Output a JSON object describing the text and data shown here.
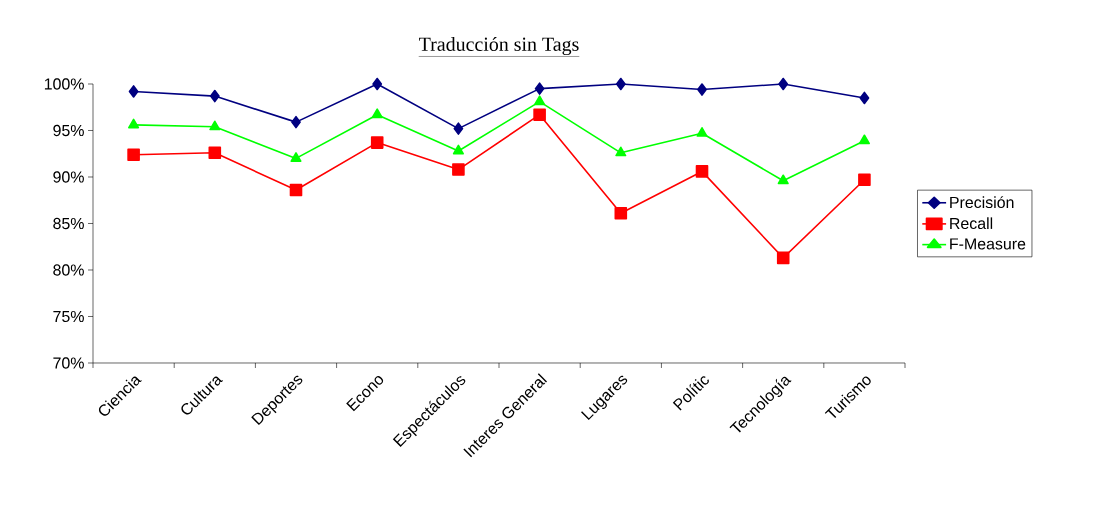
{
  "chart_data": {
    "type": "line",
    "title": "Traducción sin Tags",
    "categories": [
      "Ciencia",
      "Cultura",
      "Deportes",
      "Econo",
      "Espectáculos",
      "Interes General",
      "Lugares",
      "Polític",
      "Tecnología",
      "Turismo"
    ],
    "series": [
      {
        "name": "Precisión",
        "color": "#000080",
        "marker": "diamond",
        "values": [
          99.2,
          98.7,
          95.9,
          100,
          95.2,
          99.5,
          100,
          99.4,
          100,
          98.5
        ]
      },
      {
        "name": "Recall",
        "color": "#ff0000",
        "marker": "square",
        "values": [
          92.4,
          92.6,
          88.6,
          93.7,
          90.8,
          96.7,
          86.1,
          90.6,
          81.3,
          89.7
        ]
      },
      {
        "name": "F-Measure",
        "color": "#00ff00",
        "marker": "triangle",
        "values": [
          95.6,
          95.4,
          92.0,
          96.7,
          92.8,
          98.1,
          92.6,
          94.7,
          89.6,
          93.9
        ]
      }
    ],
    "ylim": [
      70,
      100
    ],
    "yticks": [
      {
        "value": 70,
        "label": "70%"
      },
      {
        "value": 75,
        "label": "75%"
      },
      {
        "value": 80,
        "label": "80%"
      },
      {
        "value": 85,
        "label": "85%"
      },
      {
        "value": 90,
        "label": "90%"
      },
      {
        "value": 95,
        "label": "95%"
      },
      {
        "value": 100,
        "label": "100%"
      }
    ],
    "grid": false,
    "legend": "right"
  }
}
